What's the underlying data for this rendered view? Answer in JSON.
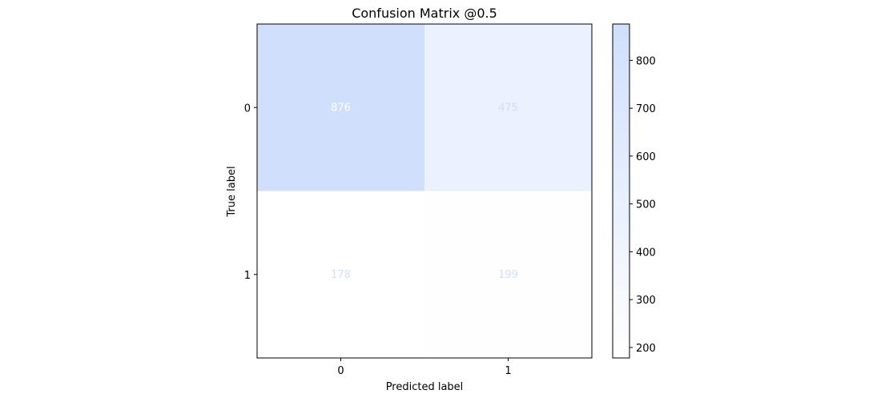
{
  "chart_data": {
    "type": "heatmap",
    "title": "Confusion Matrix @0.5",
    "xlabel": "Predicted label",
    "ylabel": "True label",
    "x_categories": [
      "0",
      "1"
    ],
    "y_categories": [
      "0",
      "1"
    ],
    "values": [
      [
        876,
        475
      ],
      [
        178,
        199
      ]
    ],
    "colorbar": {
      "ticks": [
        200,
        300,
        400,
        500,
        600,
        700,
        800
      ],
      "range": [
        178,
        876
      ],
      "color_low": "#ffffff",
      "color_high": "#cfdffc"
    }
  }
}
